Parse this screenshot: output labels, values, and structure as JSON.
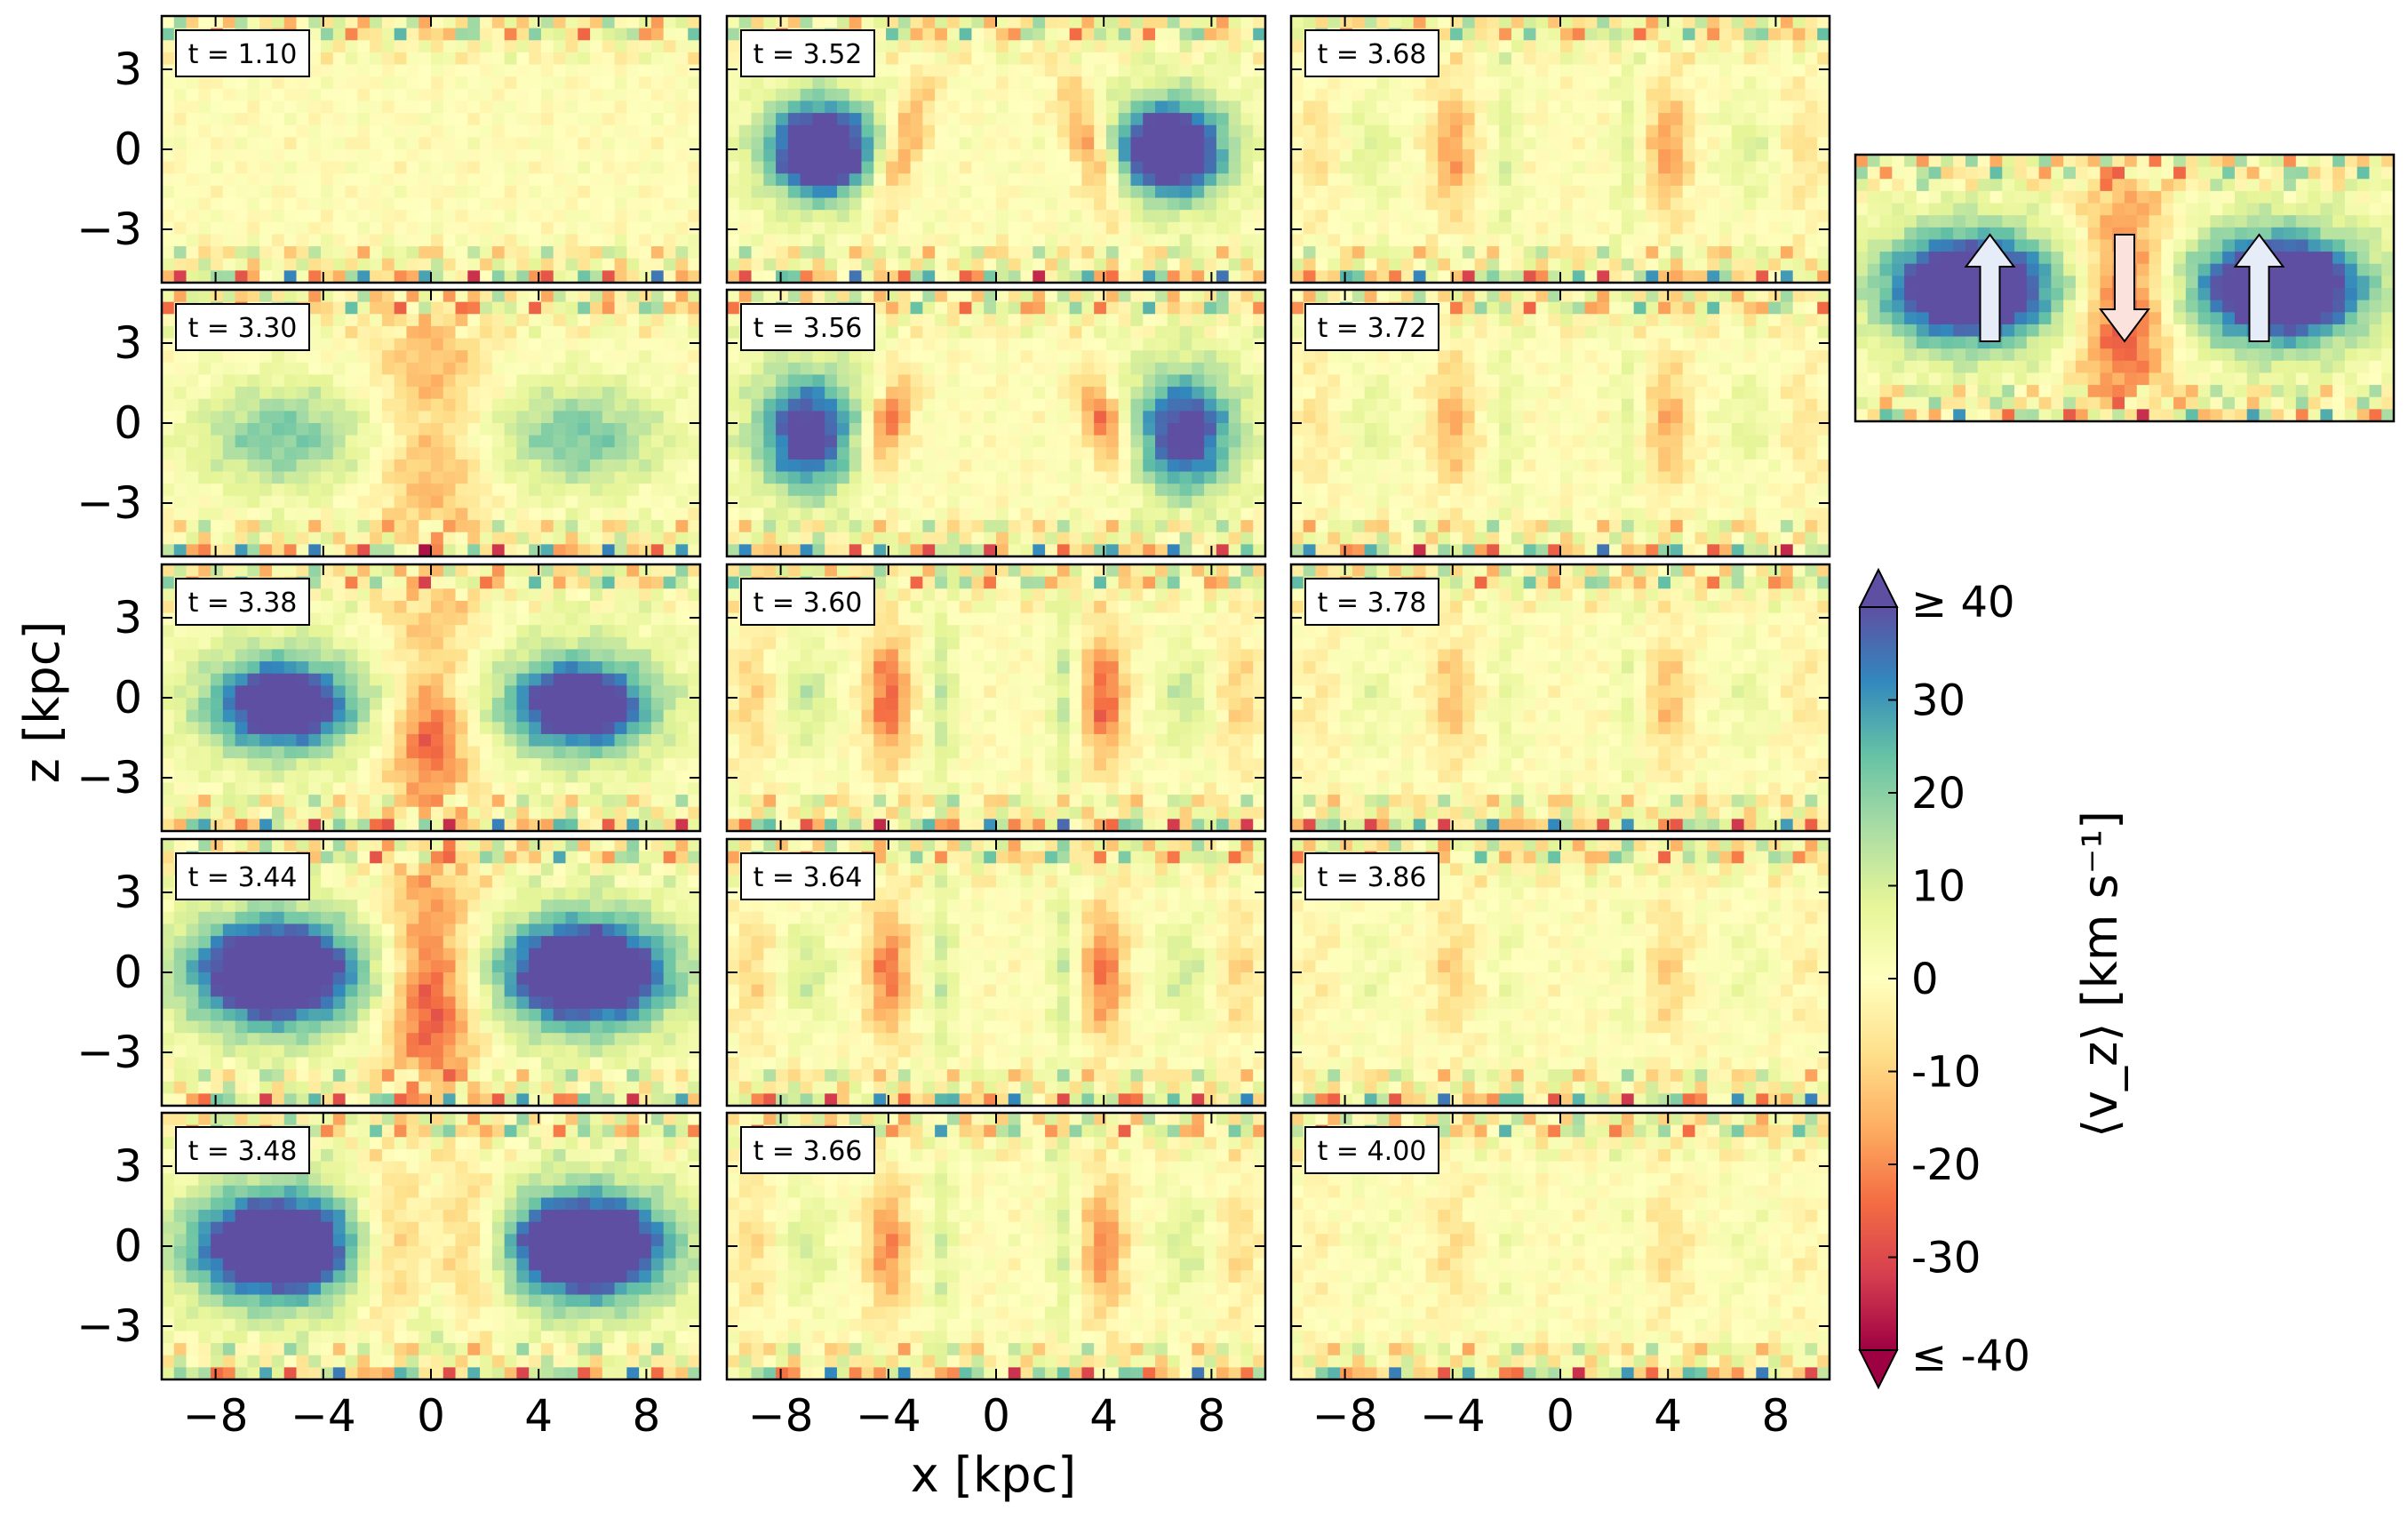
{
  "chart_data": {
    "type": "heatmap",
    "xlabel": "x [kpc]",
    "ylabel": "z [kpc]",
    "xlim": [
      -10,
      10
    ],
    "ylim": [
      -5,
      5
    ],
    "x_ticks": [
      -8,
      -4,
      0,
      4,
      8
    ],
    "x_tick_labels": [
      "−8",
      "−4",
      "0",
      "4",
      "8"
    ],
    "y_ticks": [
      3,
      0,
      -3
    ],
    "y_tick_labels": [
      "3",
      "0",
      "−3"
    ],
    "colorbar": {
      "label": "⟨v_z⟩ [km s⁻¹]",
      "range": [
        -40,
        40
      ],
      "ticks": [
        40,
        30,
        20,
        10,
        0,
        -10,
        -20,
        -30,
        -40
      ],
      "tick_labels": [
        "≥ 40",
        "30",
        "20",
        "10",
        "0",
        "-10",
        "-20",
        "-30",
        "≤ -40"
      ],
      "colors": [
        "#9e0142",
        "#d53e4f",
        "#f46d43",
        "#fdae61",
        "#fee08b",
        "#ffffbf",
        "#e6f598",
        "#abdda4",
        "#66c2a5",
        "#3288bd",
        "#5e4fa2"
      ]
    },
    "panels": [
      {
        "label": "t = 1.10",
        "t": 1.1,
        "pattern": "quiet"
      },
      {
        "label": "t = 3.30",
        "t": 3.3,
        "pattern": "x-weak"
      },
      {
        "label": "t = 3.38",
        "t": 3.38,
        "pattern": "x-medium"
      },
      {
        "label": "t = 3.44",
        "t": 3.44,
        "pattern": "x-strong"
      },
      {
        "label": "t = 3.48",
        "t": 3.48,
        "pattern": "x-strong-late"
      },
      {
        "label": "t = 3.52",
        "t": 3.52,
        "pattern": "split-strong"
      },
      {
        "label": "t = 3.56",
        "t": 3.56,
        "pattern": "split-medium"
      },
      {
        "label": "t = 3.60",
        "t": 3.6,
        "pattern": "bands-1"
      },
      {
        "label": "t = 3.64",
        "t": 3.64,
        "pattern": "bands-2"
      },
      {
        "label": "t = 3.66",
        "t": 3.66,
        "pattern": "bands-3"
      },
      {
        "label": "t = 3.68",
        "t": 3.68,
        "pattern": "bands-4"
      },
      {
        "label": "t = 3.72",
        "t": 3.72,
        "pattern": "bands-5"
      },
      {
        "label": "t = 3.78",
        "t": 3.78,
        "pattern": "bands-6"
      },
      {
        "label": "t = 3.86",
        "t": 3.86,
        "pattern": "bands-7"
      },
      {
        "label": "t = 4.00",
        "t": 4.0,
        "pattern": "bands-8"
      }
    ],
    "schematic": {
      "arrows": [
        {
          "x": -5,
          "direction": "up"
        },
        {
          "x": 0,
          "direction": "down"
        },
        {
          "x": 5,
          "direction": "up"
        }
      ]
    }
  }
}
